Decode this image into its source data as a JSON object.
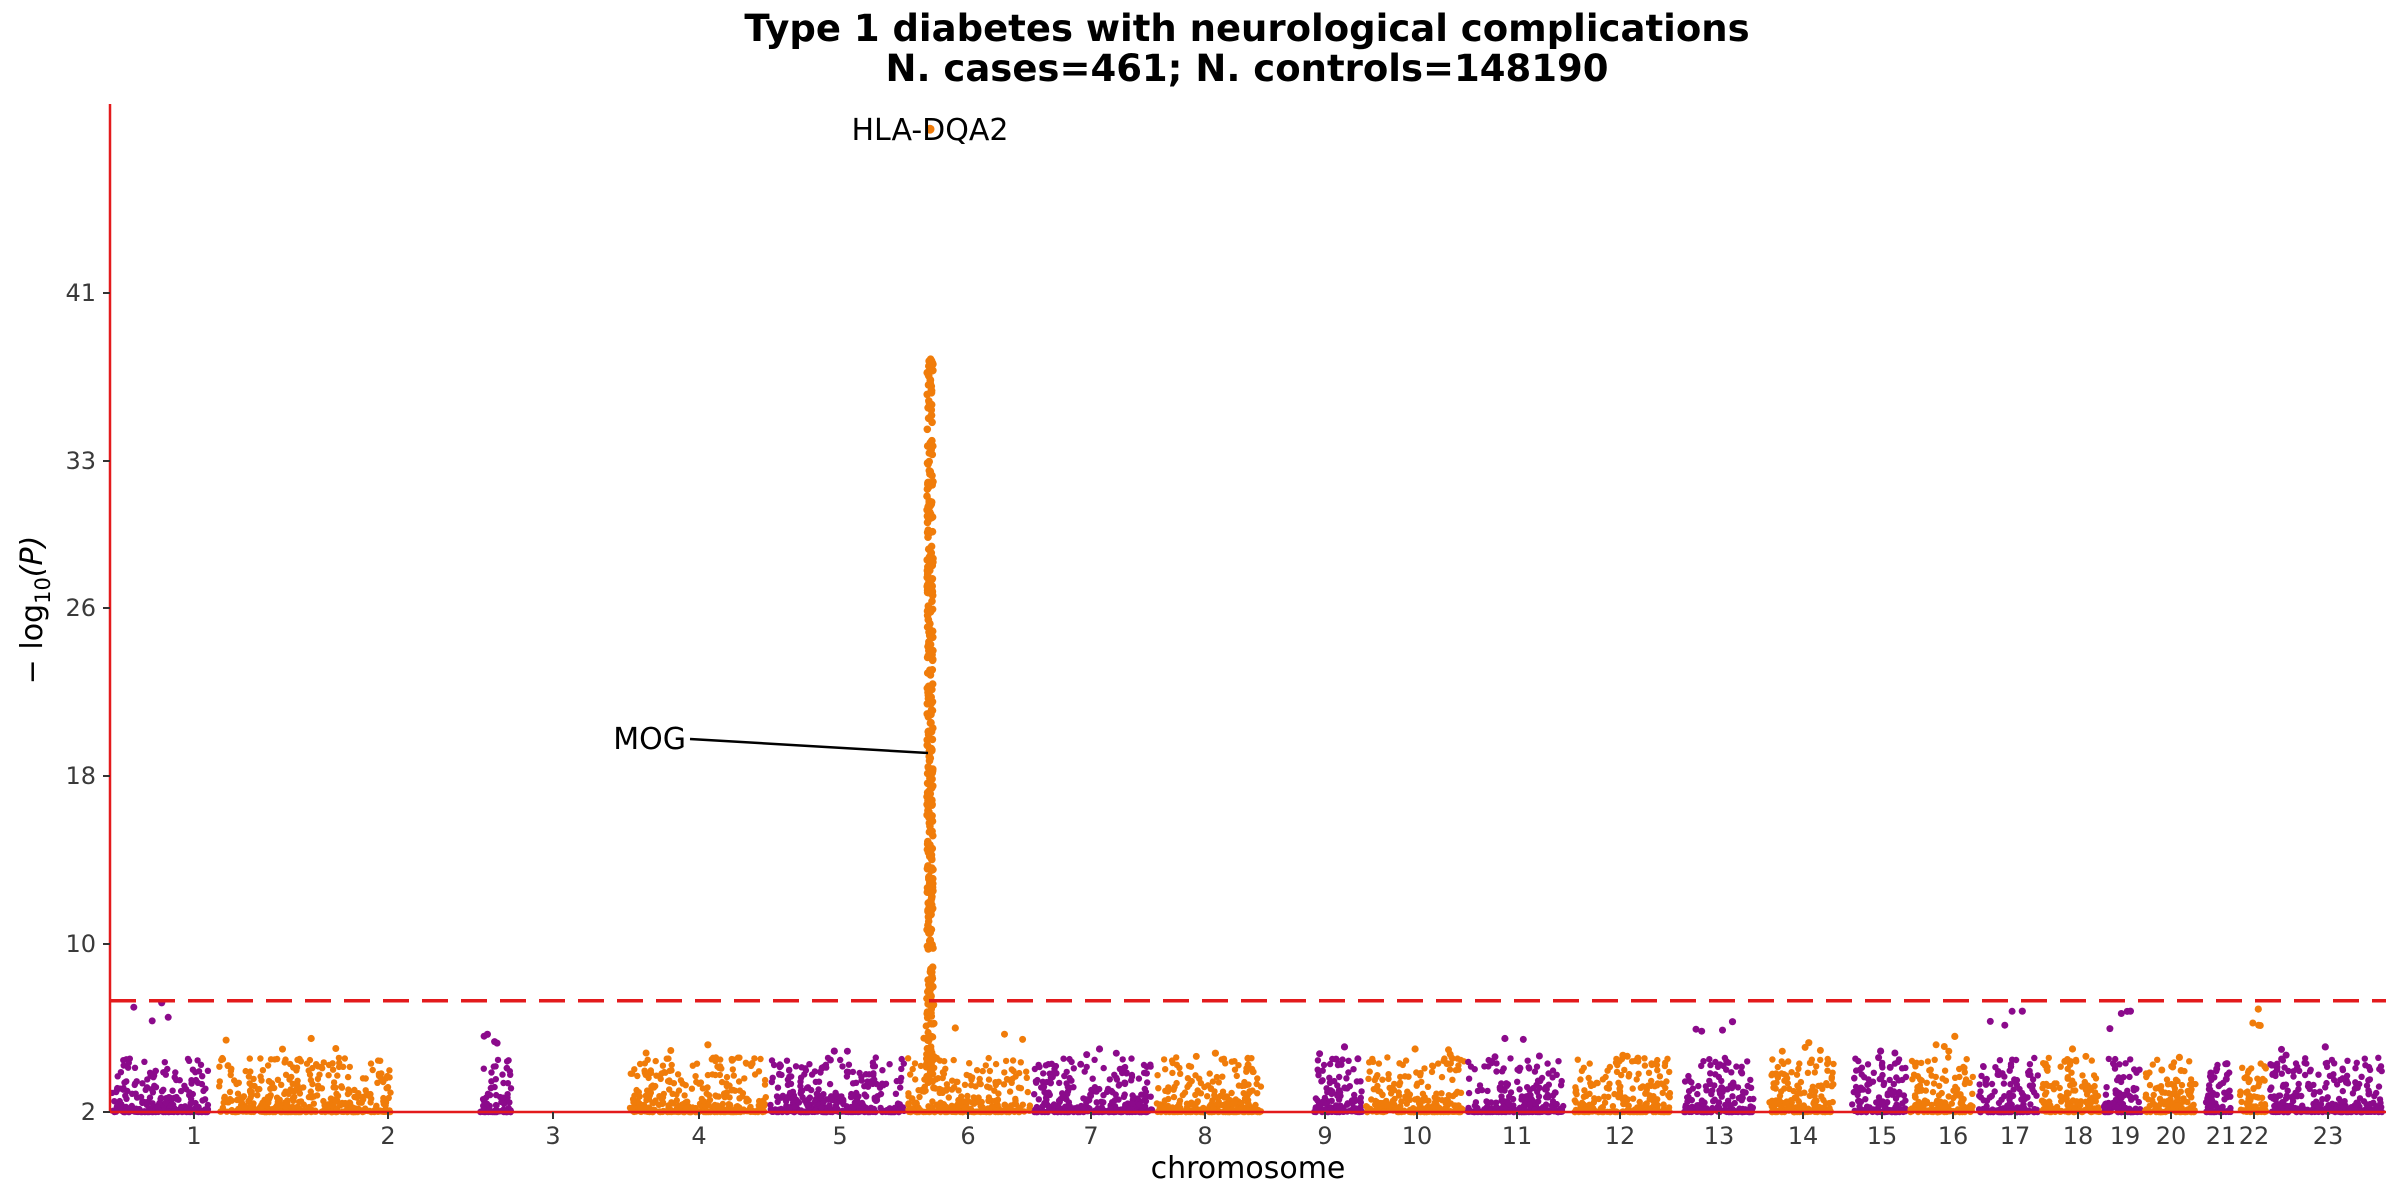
{
  "chart_data": {
    "type": "scatter",
    "subtype": "manhattan",
    "title": "Type 1 diabetes with neurological complications",
    "subtitle": "N. cases=461; N. controls=148190",
    "xlabel": "chromosome",
    "ylabel_main": "− log",
    "ylabel_sub": "10",
    "ylabel_tail": "(P)",
    "ylim": [
      2,
      50
    ],
    "yticks": [
      2,
      10,
      18,
      26,
      33,
      41
    ],
    "significance_line": 7.3,
    "colors": {
      "odd_chromosome": "#8b0a8b",
      "even_chromosome": "#f07c0a",
      "axis": "#e31a1c",
      "threshold": "#e31a1c"
    },
    "chromosomes": [
      {
        "label": "1",
        "x": 1,
        "max": 7.2
      },
      {
        "label": "2",
        "x": 2,
        "max": 5.5
      },
      {
        "label": "3",
        "x": 3,
        "max": 5.7
      },
      {
        "label": "4",
        "x": 4,
        "max": 5.2
      },
      {
        "label": "5",
        "x": 5,
        "max": 4.9
      },
      {
        "label": "6",
        "x": 6,
        "max": 6.0
      },
      {
        "label": "7",
        "x": 7,
        "max": 5.0
      },
      {
        "label": "8",
        "x": 8,
        "max": 4.8
      },
      {
        "label": "9",
        "x": 9,
        "max": 5.1
      },
      {
        "label": "10",
        "x": 10,
        "max": 5.0
      },
      {
        "label": "11",
        "x": 11,
        "max": 5.5
      },
      {
        "label": "12",
        "x": 12,
        "max": 4.7
      },
      {
        "label": "13",
        "x": 13,
        "max": 6.3
      },
      {
        "label": "14",
        "x": 14,
        "max": 5.3
      },
      {
        "label": "15",
        "x": 15,
        "max": 4.9
      },
      {
        "label": "16",
        "x": 16,
        "max": 5.6
      },
      {
        "label": "17",
        "x": 17,
        "max": 6.8
      },
      {
        "label": "18",
        "x": 18,
        "max": 5.0
      },
      {
        "label": "19",
        "x": 19,
        "max": 6.8
      },
      {
        "label": "20",
        "x": 20,
        "max": 4.6
      },
      {
        "label": "21",
        "x": 21,
        "max": 4.3
      },
      {
        "label": "22",
        "x": 22,
        "max": 6.9
      },
      {
        "label": "23",
        "x": 23,
        "max": 5.1
      }
    ],
    "peak": {
      "chromosome": "6",
      "min": 7.3,
      "max": 38,
      "top_hit": 48.8
    },
    "annotations": [
      {
        "label": "HLA-DQA2",
        "chromosome": "6",
        "y": 48.8
      },
      {
        "label": "MOG",
        "chromosome": "6",
        "y": 19
      }
    ]
  }
}
